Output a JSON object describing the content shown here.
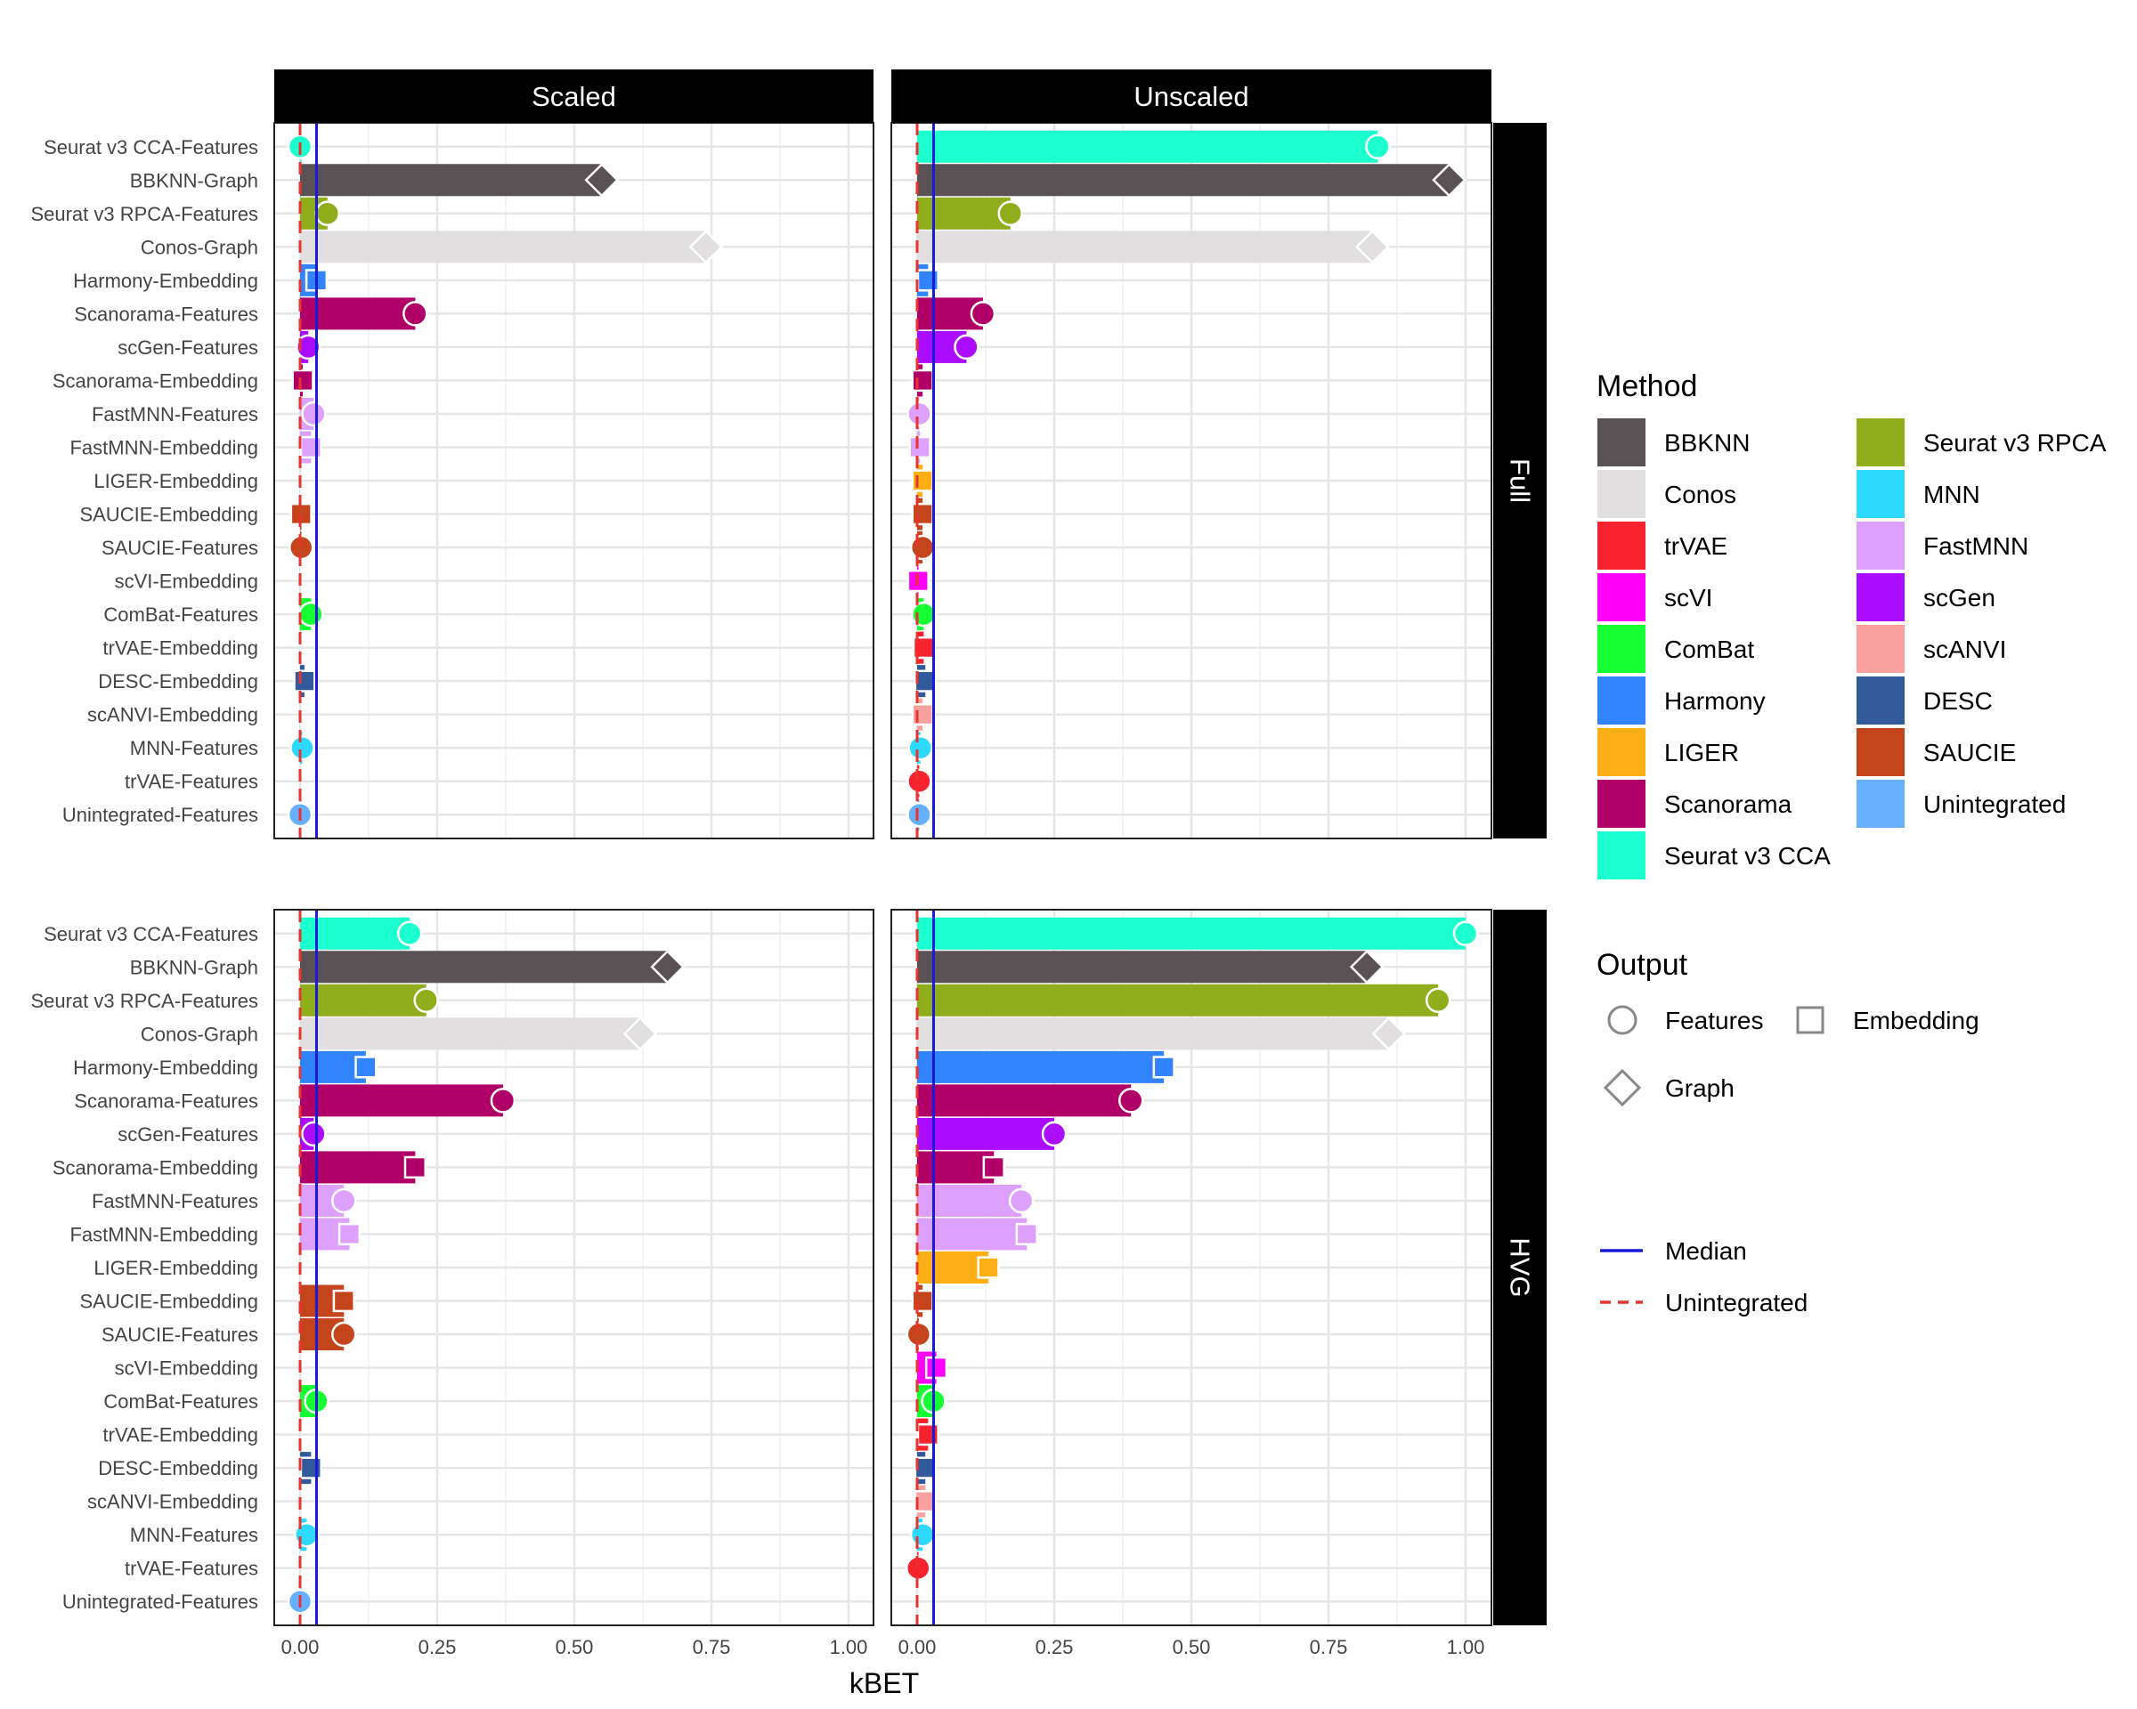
{
  "chart_data": {
    "type": "bar",
    "title": "",
    "xlabel": "kBET",
    "ylabel": "",
    "xlim": [
      0,
      1
    ],
    "x_ticks": [
      "0.00",
      "0.25",
      "0.50",
      "0.75",
      "1.00"
    ],
    "grid": true,
    "panel_columns": [
      "Scaled",
      "Unscaled"
    ],
    "panel_rows": [
      "Full",
      "HVG"
    ],
    "categories": [
      "Seurat v3 CCA-Features",
      "BBKNN-Graph",
      "Seurat v3 RPCA-Features",
      "Conos-Graph",
      "Harmony-Embedding",
      "Scanorama-Features",
      "scGen-Features",
      "Scanorama-Embedding",
      "FastMNN-Features",
      "FastMNN-Embedding",
      "LIGER-Embedding",
      "SAUCIE-Embedding",
      "SAUCIE-Features",
      "scVI-Embedding",
      "ComBat-Features",
      "trVAE-Embedding",
      "DESC-Embedding",
      "scANVI-Embedding",
      "MNN-Features",
      "trVAE-Features",
      "Unintegrated-Features"
    ],
    "category_method": [
      "Seurat v3 CCA",
      "BBKNN",
      "Seurat v3 RPCA",
      "Conos",
      "Harmony",
      "Scanorama",
      "scGen",
      "Scanorama",
      "FastMNN",
      "FastMNN",
      "LIGER",
      "SAUCIE",
      "SAUCIE",
      "scVI",
      "ComBat",
      "trVAE",
      "DESC",
      "scANVI",
      "MNN",
      "trVAE",
      "Unintegrated"
    ],
    "category_output": [
      "Features",
      "Graph",
      "Features",
      "Graph",
      "Embedding",
      "Features",
      "Features",
      "Embedding",
      "Features",
      "Embedding",
      "Embedding",
      "Embedding",
      "Features",
      "Embedding",
      "Features",
      "Embedding",
      "Embedding",
      "Embedding",
      "Features",
      "Features",
      "Features"
    ],
    "panels": [
      {
        "column": "Scaled",
        "row": "Full",
        "median": 0.03,
        "unintegrated": 0.0,
        "values": [
          0,
          0.55,
          0.05,
          0.74,
          0.03,
          0.21,
          0.015,
          0.005,
          0.025,
          0.02,
          null,
          0.002,
          0.002,
          null,
          0.02,
          null,
          0.008,
          null,
          0.004,
          null,
          0
        ]
      },
      {
        "column": "Unscaled",
        "row": "Full",
        "median": 0.03,
        "unintegrated": 0.0,
        "values": [
          0.84,
          0.97,
          0.17,
          0.83,
          0.02,
          0.12,
          0.09,
          0.01,
          0.004,
          0.005,
          0.01,
          0.01,
          0.01,
          0.002,
          0.012,
          0.012,
          0.015,
          0.01,
          0.006,
          0.004,
          0.004
        ]
      },
      {
        "column": "Scaled",
        "row": "HVG",
        "median": 0.03,
        "unintegrated": 0.0,
        "values": [
          0.2,
          0.67,
          0.23,
          0.62,
          0.12,
          0.37,
          0.025,
          0.21,
          0.08,
          0.09,
          null,
          0.08,
          0.08,
          null,
          0.03,
          null,
          0.02,
          null,
          0.012,
          null,
          0
        ]
      },
      {
        "column": "Unscaled",
        "row": "HVG",
        "median": 0.03,
        "unintegrated": 0.0,
        "values": [
          1.0,
          0.82,
          0.95,
          0.86,
          0.45,
          0.39,
          0.25,
          0.14,
          0.19,
          0.2,
          0.13,
          0.01,
          0.003,
          0.035,
          0.03,
          0.02,
          0.015,
          0.015,
          0.01,
          0.002,
          null
        ]
      }
    ],
    "legend": {
      "position": "right",
      "method_title": "Method",
      "methods": [
        {
          "name": "BBKNN",
          "color": "#5a5155"
        },
        {
          "name": "Conos",
          "color": "#e1dfdf"
        },
        {
          "name": "trVAE",
          "color": "#f6222e"
        },
        {
          "name": "scVI",
          "color": "#fe00fa"
        },
        {
          "name": "ComBat",
          "color": "#16ff32"
        },
        {
          "name": "Harmony",
          "color": "#3283fe"
        },
        {
          "name": "LIGER",
          "color": "#feaf16"
        },
        {
          "name": "Scanorama",
          "color": "#b00068"
        },
        {
          "name": "Seurat v3 CCA",
          "color": "#1cffce"
        },
        {
          "name": "Seurat v3 RPCA",
          "color": "#90ad1c"
        },
        {
          "name": "MNN",
          "color": "#2ed9ff"
        },
        {
          "name": "FastMNN",
          "color": "#dea0fd"
        },
        {
          "name": "scGen",
          "color": "#aa0dfe"
        },
        {
          "name": "scANVI",
          "color": "#f8a19f"
        },
        {
          "name": "DESC",
          "color": "#325a9b"
        },
        {
          "name": "SAUCIE",
          "color": "#c4451c"
        },
        {
          "name": "Unintegrated",
          "color": "#66b0ff"
        }
      ],
      "output_title": "Output",
      "outputs": [
        "Features",
        "Embedding",
        "Graph"
      ],
      "lines": [
        {
          "name": "Median",
          "color": "#1a1adb",
          "style": "solid"
        },
        {
          "name": "Unintegrated",
          "color": "#e8332e",
          "style": "dashed"
        }
      ]
    }
  }
}
